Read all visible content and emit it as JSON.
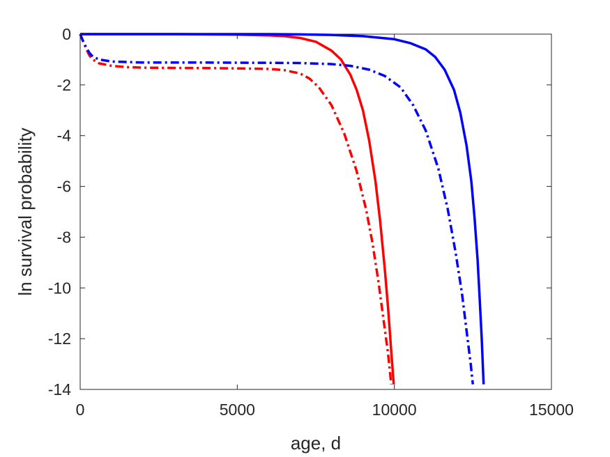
{
  "chart_data": {
    "type": "line",
    "title": "",
    "xlabel": "age, d",
    "ylabel": "ln survival probability",
    "xlim": [
      0,
      15000
    ],
    "ylim": [
      -14,
      0
    ],
    "xticks": [
      0,
      5000,
      10000,
      15000
    ],
    "yticks": [
      0,
      -2,
      -4,
      -6,
      -8,
      -10,
      -12,
      -14
    ],
    "xtick_labels": [
      "0",
      "5000",
      "10000",
      "15000"
    ],
    "ytick_labels": [
      "0",
      "-2",
      "-4",
      "-6",
      "-8",
      "-10",
      "-12",
      "-14"
    ],
    "grid": false,
    "legend": "none",
    "series": [
      {
        "color": "#ff0000",
        "style": "solid",
        "points": [
          [
            0,
            0
          ],
          [
            1000,
            0
          ],
          [
            2000,
            0
          ],
          [
            3000,
            0
          ],
          [
            4000,
            -0.01
          ],
          [
            5000,
            -0.02
          ],
          [
            6000,
            -0.05
          ],
          [
            6500,
            -0.08
          ],
          [
            7000,
            -0.15
          ],
          [
            7500,
            -0.3
          ],
          [
            8000,
            -0.65
          ],
          [
            8300,
            -1.0
          ],
          [
            8600,
            -1.6
          ],
          [
            8800,
            -2.2
          ],
          [
            9000,
            -3.0
          ],
          [
            9200,
            -4.2
          ],
          [
            9400,
            -5.8
          ],
          [
            9550,
            -7.4
          ],
          [
            9700,
            -9.3
          ],
          [
            9800,
            -10.8
          ],
          [
            9900,
            -12.5
          ],
          [
            9980,
            -13.8
          ]
        ]
      },
      {
        "color": "#ff0000",
        "style": "dashdot",
        "points": [
          [
            0,
            0
          ],
          [
            100,
            -0.3
          ],
          [
            200,
            -0.6
          ],
          [
            300,
            -0.85
          ],
          [
            400,
            -1.0
          ],
          [
            600,
            -1.15
          ],
          [
            1000,
            -1.25
          ],
          [
            1500,
            -1.3
          ],
          [
            2000,
            -1.32
          ],
          [
            3000,
            -1.33
          ],
          [
            4000,
            -1.34
          ],
          [
            5000,
            -1.35
          ],
          [
            6000,
            -1.37
          ],
          [
            6500,
            -1.42
          ],
          [
            7000,
            -1.55
          ],
          [
            7300,
            -1.75
          ],
          [
            7600,
            -2.1
          ],
          [
            8000,
            -2.8
          ],
          [
            8400,
            -3.9
          ],
          [
            8800,
            -5.4
          ],
          [
            9100,
            -6.9
          ],
          [
            9300,
            -8.2
          ],
          [
            9500,
            -9.8
          ],
          [
            9650,
            -11.2
          ],
          [
            9800,
            -12.6
          ],
          [
            9900,
            -13.8
          ]
        ]
      },
      {
        "color": "#0000ff",
        "style": "solid",
        "points": [
          [
            0,
            0
          ],
          [
            2000,
            0
          ],
          [
            4000,
            0
          ],
          [
            6000,
            0
          ],
          [
            7000,
            -0.01
          ],
          [
            8000,
            -0.03
          ],
          [
            9000,
            -0.08
          ],
          [
            10000,
            -0.2
          ],
          [
            10500,
            -0.35
          ],
          [
            11000,
            -0.6
          ],
          [
            11300,
            -0.9
          ],
          [
            11600,
            -1.4
          ],
          [
            11900,
            -2.2
          ],
          [
            12100,
            -3.1
          ],
          [
            12300,
            -4.4
          ],
          [
            12450,
            -5.8
          ],
          [
            12550,
            -7.2
          ],
          [
            12650,
            -8.9
          ],
          [
            12720,
            -10.5
          ],
          [
            12780,
            -12.0
          ],
          [
            12840,
            -13.8
          ]
        ]
      },
      {
        "color": "#0000ff",
        "style": "dashdot",
        "points": [
          [
            0,
            0
          ],
          [
            100,
            -0.3
          ],
          [
            200,
            -0.55
          ],
          [
            300,
            -0.75
          ],
          [
            400,
            -0.88
          ],
          [
            600,
            -1.0
          ],
          [
            1000,
            -1.08
          ],
          [
            2000,
            -1.12
          ],
          [
            4000,
            -1.12
          ],
          [
            6000,
            -1.13
          ],
          [
            7000,
            -1.14
          ],
          [
            8000,
            -1.18
          ],
          [
            8600,
            -1.25
          ],
          [
            9200,
            -1.4
          ],
          [
            9700,
            -1.65
          ],
          [
            10200,
            -2.1
          ],
          [
            10600,
            -2.8
          ],
          [
            11000,
            -3.8
          ],
          [
            11400,
            -5.3
          ],
          [
            11700,
            -6.9
          ],
          [
            11950,
            -8.6
          ],
          [
            12150,
            -10.2
          ],
          [
            12300,
            -11.7
          ],
          [
            12430,
            -13.0
          ],
          [
            12500,
            -13.8
          ]
        ]
      }
    ]
  }
}
